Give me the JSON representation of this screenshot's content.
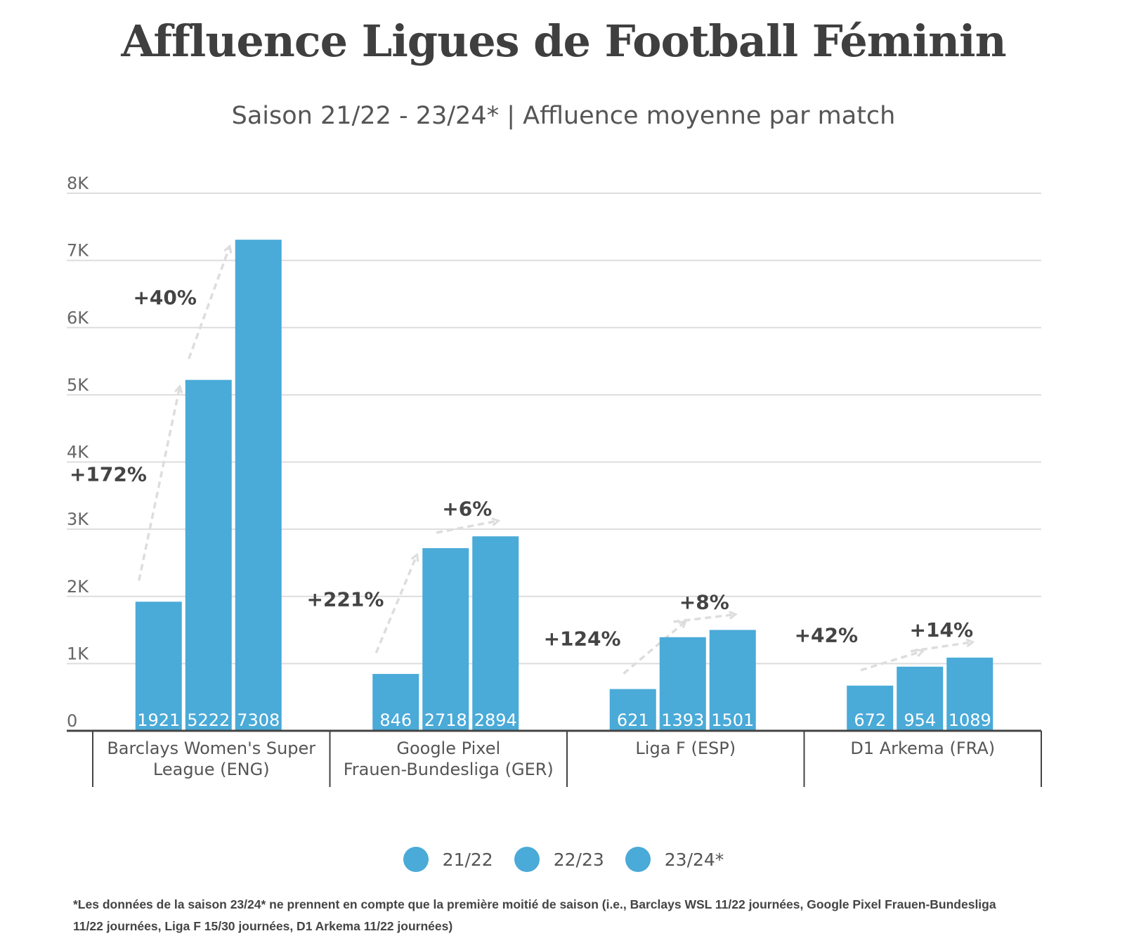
{
  "chart_data": {
    "type": "bar",
    "title": "Affluence Ligues de Football Féminin",
    "subtitle": "Saison 21/22 - 23/24* | Affluence moyenne par match",
    "categories": [
      [
        "Barclays Women's Super",
        "League (ENG)"
      ],
      [
        "Google Pixel",
        "Frauen-Bundesliga (GER)"
      ],
      [
        "Liga F (ESP)"
      ],
      [
        "D1 Arkema (FRA)"
      ]
    ],
    "series": [
      {
        "name": "21/22",
        "values": [
          1921,
          846,
          621,
          672
        ]
      },
      {
        "name": "22/23",
        "values": [
          5222,
          2718,
          1393,
          954
        ]
      },
      {
        "name": "23/24*",
        "values": [
          7308,
          2894,
          1501,
          1089
        ]
      }
    ],
    "growth_labels": [
      [
        "+172%",
        "+40%"
      ],
      [
        "+221%",
        "+6%"
      ],
      [
        "+124%",
        "+8%"
      ],
      [
        "+42%",
        "+14%"
      ]
    ],
    "ylim": [
      0,
      8000
    ],
    "yticks": [
      0,
      1000,
      2000,
      3000,
      4000,
      5000,
      6000,
      7000,
      8000
    ],
    "ytick_labels": [
      "0",
      "1K",
      "2K",
      "3K",
      "4K",
      "5K",
      "6K",
      "7K",
      "8K"
    ],
    "xlabel": "",
    "ylabel": "",
    "legend": "bottom",
    "grid": true
  },
  "colors": {
    "bar": "#4aaad8",
    "grid": "#dddddd",
    "axis": "#444444",
    "arrow": "#dddddd"
  },
  "footnote": {
    "line1": "*Les données de la saison 23/24* ne prennent en compte que la première moitié de saison (i.e., Barclays WSL 11/22 journées, Google Pixel Frauen-Bundesliga",
    "line2": "11/22 journées, Liga F 15/30 journées, D1 Arkema 11/22 journées)"
  }
}
